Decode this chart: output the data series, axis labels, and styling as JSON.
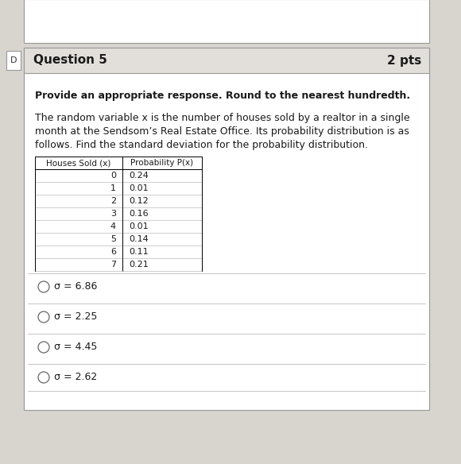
{
  "question_number": "Question 5",
  "points": "2 pts",
  "instruction": "Provide an appropriate response. Round to the nearest hundredth.",
  "problem_lines": [
    "The random variable x is the number of houses sold by a realtor in a single",
    "month at the Sendsom’s Real Estate Office. Its probability distribution is as",
    "follows. Find the standard deviation for the probability distribution."
  ],
  "col1_header": "Houses Sold (x)",
  "col2_header": "Probability P(x)",
  "table_data": [
    [
      "0",
      "0.24"
    ],
    [
      "1",
      "0.01"
    ],
    [
      "2",
      "0.12"
    ],
    [
      "3",
      "0.16"
    ],
    [
      "4",
      "0.01"
    ],
    [
      "5",
      "0.14"
    ],
    [
      "6",
      "0.11"
    ],
    [
      "7",
      "0.21"
    ]
  ],
  "options": [
    "σ = 6.86",
    "σ = 2.25",
    "σ = 4.45",
    "σ = 2.62"
  ],
  "outer_bg": "#d8d4ce",
  "box_bg": "#ffffff",
  "header_bg": "#e2deda",
  "text_color": "#1a1a1a",
  "sep_color": "#bbbbbb",
  "border_color": "#999999"
}
